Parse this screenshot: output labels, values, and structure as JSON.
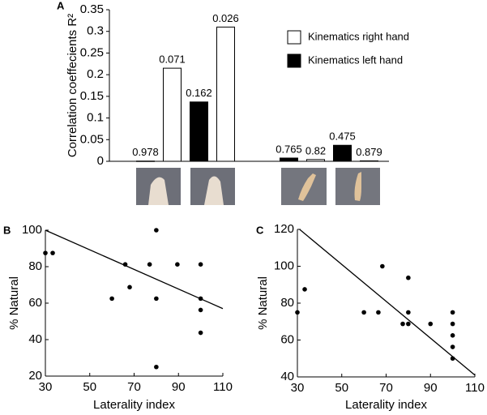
{
  "chart_data": [
    {
      "type": "bar",
      "panel": "A",
      "y_label": "Correlation coeffecients R²",
      "categories": [
        null,
        null,
        null,
        null
      ],
      "series": [
        {
          "name": "Kinematics right hand",
          "color": "#ffffff",
          "values": [
            0.215,
            0.31,
            0.004,
            0.001
          ],
          "annotations": [
            "0.071",
            "0.026",
            "0.82",
            "0.879"
          ]
        },
        {
          "name": "Kinematics left hand",
          "color": "#000000",
          "values": [
            0.0005,
            0.137,
            0.0075,
            0.037
          ],
          "annotations": [
            "0.978",
            "0.162",
            "0.765",
            "0.475"
          ]
        }
      ],
      "ylim": [
        0,
        0.35
      ],
      "yticks": [
        0,
        0.05,
        0.1,
        0.15,
        0.2,
        0.25,
        0.3,
        0.35
      ]
    },
    {
      "type": "scatter",
      "panel": "B",
      "x_label": "Laterality index",
      "y_label": "% Natural",
      "x": [
        30,
        33.3,
        66,
        68,
        60,
        77,
        80,
        80,
        89.5,
        100,
        100,
        100,
        100,
        80
      ],
      "y": [
        87.5,
        87.5,
        81.25,
        68.75,
        62.5,
        81.25,
        100,
        62.5,
        81.25,
        81.25,
        62.5,
        56.25,
        43.75,
        25
      ],
      "fit": {
        "x": [
          30,
          110
        ],
        "y": [
          100,
          57
        ]
      },
      "color": "#000000",
      "xlim": [
        30,
        110
      ],
      "xticks": [
        30,
        50,
        70,
        90,
        110
      ],
      "ylim": [
        20,
        100
      ],
      "yticks": [
        20,
        40,
        60,
        80,
        100
      ]
    },
    {
      "type": "scatter",
      "panel": "C",
      "x_label": "Laterality index",
      "y_label": "% Natural",
      "x": [
        30,
        33.3,
        60,
        66.5,
        68.3,
        77.5,
        80,
        80,
        80,
        90,
        100,
        100,
        100,
        100,
        100
      ],
      "y": [
        75,
        87.5,
        75,
        75,
        100,
        68.75,
        93.75,
        75,
        68.75,
        68.75,
        75,
        68.75,
        62.5,
        56.25,
        50
      ],
      "fit": {
        "x": [
          31,
          110
        ],
        "y": [
          120,
          41
        ]
      },
      "color": "#000000",
      "xlim": [
        30,
        110
      ],
      "xticks": [
        30,
        50,
        70,
        90,
        110
      ],
      "ylim": [
        40,
        120
      ],
      "yticks": [
        40,
        60,
        80,
        100,
        120
      ]
    }
  ]
}
